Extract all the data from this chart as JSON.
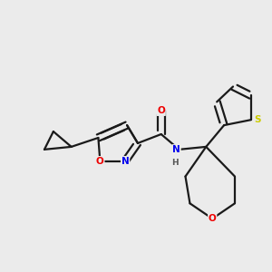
{
  "bg_color": "#ebebeb",
  "bond_color": "#1a1a1a",
  "atom_colors": {
    "N": "#0000ee",
    "O": "#ee0000",
    "S": "#cccc00",
    "H": "#555555",
    "C": "#1a1a1a"
  },
  "figsize": [
    3.0,
    3.0
  ],
  "dpi": 100,
  "lw": 1.6,
  "fontsize": 8.5
}
